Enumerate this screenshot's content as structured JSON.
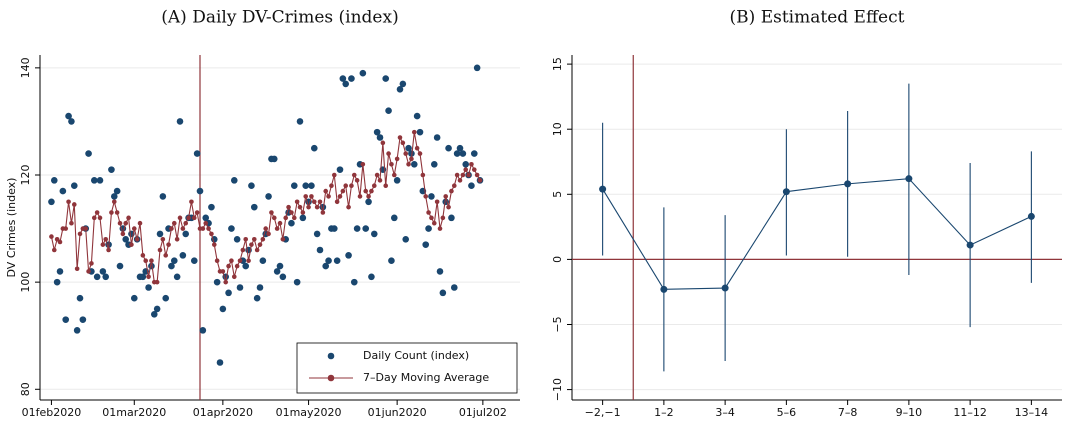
{
  "chart_data": [
    {
      "type": "scatter",
      "title": "(A) Daily DV-Crimes (index)",
      "y_label": "DV Crimes (index)",
      "x": [
        21946,
        21947,
        21948,
        21949,
        21950,
        21951,
        21952,
        21953,
        21954,
        21955,
        21956,
        21957,
        21958,
        21959,
        21960,
        21961,
        21962,
        21963,
        21964,
        21965,
        21966,
        21967,
        21968,
        21969,
        21970,
        21971,
        21972,
        21973,
        21974,
        21975,
        21976,
        21977,
        21978,
        21979,
        21980,
        21981,
        21982,
        21983,
        21984,
        21985,
        21986,
        21987,
        21988,
        21989,
        21990,
        21991,
        21992,
        21993,
        21994,
        21995,
        21996,
        21997,
        21998,
        21999,
        22000,
        22001,
        22002,
        22003,
        22004,
        22005,
        22006,
        22007,
        22008,
        22009,
        22010,
        22011,
        22012,
        22013,
        22014,
        22015,
        22016,
        22017,
        22018,
        22019,
        22020,
        22021,
        22022,
        22023,
        22024,
        22025,
        22026,
        22027,
        22028,
        22029,
        22030,
        22031,
        22032,
        22033,
        22034,
        22035,
        22036,
        22037,
        22038,
        22039,
        22040,
        22041,
        22042,
        22043,
        22044,
        22045,
        22046,
        22047,
        22048,
        22049,
        22050,
        22051,
        22052,
        22053,
        22054,
        22055,
        22056,
        22057,
        22058,
        22059,
        22060,
        22061,
        22062,
        22063,
        22064,
        22065,
        22066,
        22067,
        22068,
        22069,
        22070,
        22071,
        22072,
        22073,
        22074,
        22075,
        22076,
        22077,
        22078,
        22079,
        22080,
        22081,
        22082,
        22083,
        22084,
        22085,
        22086,
        22087,
        22088,
        22089,
        22090,
        22091,
        22092,
        22093,
        22094,
        22095,
        22096
      ],
      "series": [
        {
          "name": "Daily Count (index)",
          "color": "#1a476f",
          "style": "markers",
          "values": [
            115,
            119,
            100,
            102,
            117,
            93,
            131,
            130,
            118,
            91,
            97,
            93,
            110,
            124,
            102,
            119,
            101,
            119,
            102,
            101,
            107,
            121,
            116,
            117,
            103,
            110,
            108,
            107,
            109,
            97,
            108,
            101,
            101,
            102,
            99,
            103,
            94,
            95,
            109,
            116,
            97,
            110,
            103,
            104,
            101,
            130,
            105,
            109,
            112,
            112,
            104,
            124,
            117,
            91,
            112,
            111,
            114,
            108,
            100,
            85,
            95,
            101,
            98,
            110,
            119,
            108,
            99,
            104,
            103,
            106,
            118,
            114,
            97,
            99,
            104,
            109,
            116,
            123,
            123,
            102,
            103,
            101,
            108,
            113,
            111,
            118,
            100,
            130,
            112,
            118,
            115,
            118,
            125,
            109,
            106,
            114,
            103,
            104,
            110,
            110,
            104,
            121,
            138,
            137,
            105,
            138,
            100,
            110,
            122,
            139,
            110,
            115,
            101,
            109,
            128,
            127,
            121,
            138,
            132,
            104,
            112,
            119,
            136,
            137,
            108,
            125,
            124,
            122,
            131,
            128,
            117,
            107,
            110,
            116,
            122,
            127,
            102,
            98,
            115,
            125,
            112,
            99,
            124,
            125,
            124,
            122,
            120,
            118,
            124,
            140,
            119
          ]
        },
        {
          "name": "7–Day Moving Average",
          "color": "#90353b",
          "style": "line-markers",
          "values": [
            108.5,
            106,
            108,
            107.5,
            110,
            110,
            115,
            111,
            114.5,
            102.5,
            109,
            110,
            110,
            102,
            103.5,
            112,
            113,
            112,
            107,
            108,
            106,
            113,
            115,
            113,
            111,
            109,
            111,
            112,
            107,
            110,
            108,
            111,
            105,
            104,
            101,
            104,
            100,
            100,
            106,
            108,
            105,
            107,
            110,
            111,
            108,
            112,
            110,
            111,
            112,
            115,
            112,
            113,
            110,
            110,
            111,
            110,
            109,
            107,
            104,
            102,
            102,
            100,
            103,
            104,
            101,
            103,
            104,
            106,
            108,
            104,
            107,
            108,
            106,
            107,
            108,
            110,
            109,
            113,
            112,
            110,
            111,
            108,
            112,
            114,
            113,
            112,
            115,
            114,
            113,
            116,
            114,
            116,
            115,
            114,
            115,
            113,
            117,
            116,
            118,
            120,
            115,
            116,
            117,
            118,
            114,
            118,
            120,
            119,
            116,
            122,
            117,
            116,
            117,
            118,
            120,
            119,
            126,
            118,
            124,
            122,
            120,
            123,
            127,
            126,
            124,
            122,
            123,
            128,
            125,
            124,
            120,
            116,
            113,
            112,
            111,
            115,
            110,
            112,
            116,
            114,
            117,
            118,
            120,
            119,
            120,
            121,
            120,
            122,
            121,
            120,
            119
          ]
        }
      ],
      "xlim": [
        21942,
        22110
      ],
      "xticks": [
        {
          "value": 21946,
          "label": "01feb2020"
        },
        {
          "value": 21975,
          "label": "01mar2020"
        },
        {
          "value": 22006,
          "label": "01apr2020"
        },
        {
          "value": 22036,
          "label": "01may2020"
        },
        {
          "value": 22067,
          "label": "01jun2020"
        },
        {
          "value": 22097,
          "label": "01jul202"
        }
      ],
      "ylim": [
        78,
        142.4
      ],
      "yticks": [
        80,
        100,
        120,
        140
      ],
      "reference_x": 21998,
      "grid": true,
      "legend": "bottom-right"
    },
    {
      "type": "errorbar",
      "title": "(B) Estimated Effect",
      "color": "#1a476f",
      "categories": [
        "−2,−1",
        "1–2",
        "3–4",
        "5–6",
        "7–8",
        "9–10",
        "11–12",
        "13–14"
      ],
      "values": [
        5.4,
        -2.3,
        -2.2,
        5.2,
        5.8,
        6.2,
        1.1,
        3.3
      ],
      "ci_low": [
        0.3,
        -8.6,
        -7.8,
        0.3,
        0.2,
        -1.2,
        -5.2,
        -1.8
      ],
      "ci_high": [
        10.5,
        4.0,
        3.4,
        10.0,
        11.4,
        13.5,
        7.4,
        8.3
      ],
      "ylim": [
        -10.8,
        15.7
      ],
      "yticks": [
        {
          "value": -10,
          "label": "−10"
        },
        {
          "value": -5,
          "label": "−5"
        },
        0,
        5,
        10,
        15
      ],
      "reference_x": 0.5,
      "reference_y": 0,
      "grid": true
    }
  ]
}
